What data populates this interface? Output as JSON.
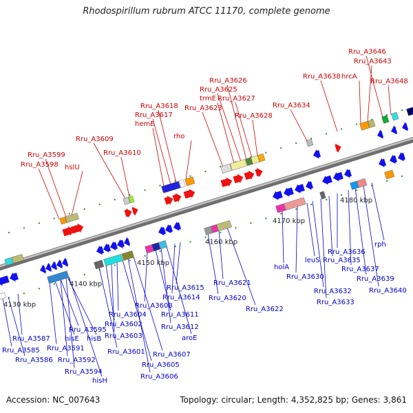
{
  "title": "Rhodospirillum rubrum ATCC 11170, complete genome",
  "footer": {
    "accession": "Accession: NC_007643",
    "topology": "Topology: circular; Length: 4,352,825 bp; Genes: 3,861"
  },
  "colors": {
    "top_label": "#cc0000",
    "bottom_label": "#0000cc",
    "forward_arrow": "#ee1111",
    "reverse_arrow": "#1111ee",
    "backbone": "#8a8a8a",
    "tick": "#1a8a1a"
  },
  "ticks": [
    "4130 kbp",
    "4140 kbp",
    "4150 kbp",
    "4160 kbp",
    "4170 kbp",
    "4180 kbp"
  ],
  "top_labels": [
    "Rru_A3598",
    "Rru_A3599",
    "hslU",
    "Rru_A3609",
    "Rru_A3610",
    "hemE",
    "Rru_A3617",
    "Rru_A3618",
    "rho",
    "Rru_A3623",
    "trmE",
    "Rru_A3625",
    "Rru_A3626",
    "Rru_A3627",
    "Rru_A3628",
    "Rru_A3634",
    "Rru_A3638",
    "hrcA",
    "Rru_A3643",
    "Rru_A3646",
    "Rru_A3648"
  ],
  "bottom_labels": [
    "Rru_A3585",
    "Rru_A3586",
    "Rru_A3587",
    "Rru_A3591",
    "hisE",
    "Rru_A3592",
    "Rru_A3594",
    "hisH",
    "Rru_A3595",
    "hisB",
    "Rru_A3601",
    "Rru_A3602",
    "Rru_A3603",
    "Rru_A3604",
    "Rru_A3605",
    "Rru_A3606",
    "Rru_A3607",
    "Rru_A3608",
    "Rru_A3611",
    "Rru_A3612",
    "aroE",
    "Rru_A3614",
    "Rru_A3615",
    "Rru_A3620",
    "Rru_A3621",
    "Rru_A3622",
    "holA",
    "Rru_A3630",
    "leuS",
    "Rru_A3632",
    "Rru_A3633",
    "Rru_A3635",
    "Rru_A3636",
    "Rru_A3637",
    "Rru_A3639",
    "Rru_A3640",
    "rph"
  ]
}
